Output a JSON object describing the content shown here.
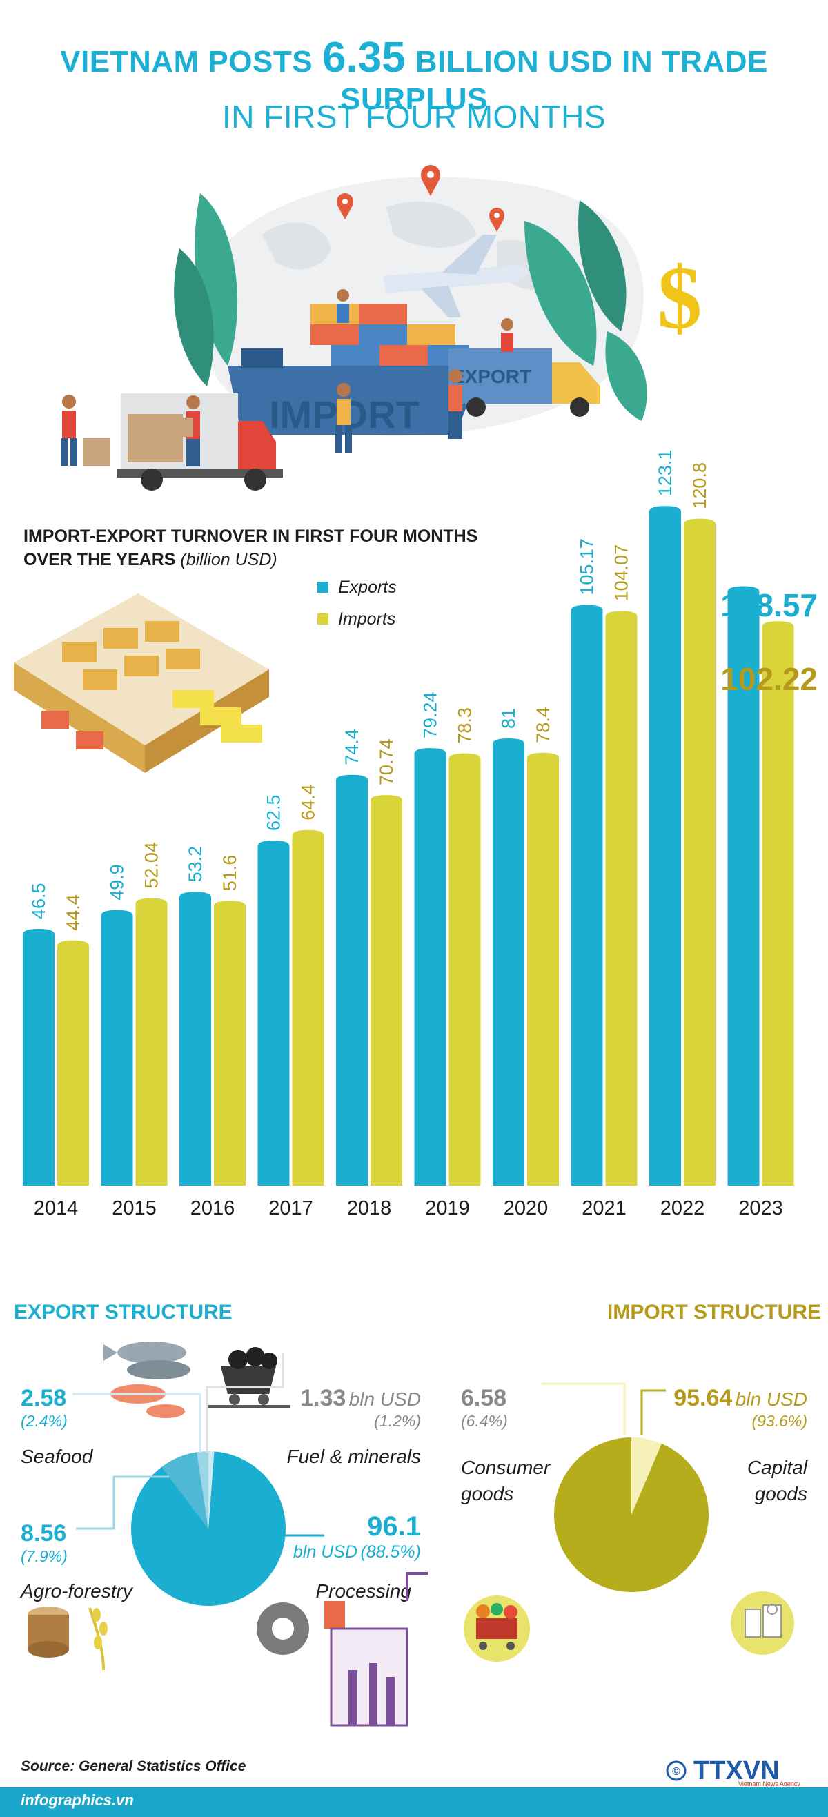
{
  "title": {
    "prefix": "VIETNAM POSTS",
    "highlight": "6.35",
    "suffix": "BILLION USD IN TRADE SURPLUS",
    "subtitle": "IN FIRST FOUR MONTHS"
  },
  "hero_labels": {
    "import": "IMPORT",
    "export": "EXPORT"
  },
  "chart_header": {
    "title_line1": "IMPORT-EXPORT TURNOVER IN FIRST FOUR MONTHS",
    "title_line2": "OVER THE YEARS",
    "unit": "(billion USD)"
  },
  "colors": {
    "exports": "#1aaed0",
    "imports": "#d9d43a",
    "import_text": "#b59a1c",
    "title": "#1bb0d4"
  },
  "chart_data": {
    "type": "bar",
    "categories": [
      "2014",
      "2015",
      "2016",
      "2017",
      "2018",
      "2019",
      "2020",
      "2021",
      "2022",
      "2023"
    ],
    "series": [
      {
        "name": "Exports",
        "values": [
          46.5,
          49.9,
          53.2,
          62.5,
          74.4,
          79.24,
          81,
          105.17,
          123.1,
          108.57
        ]
      },
      {
        "name": "Imports",
        "values": [
          44.4,
          52.04,
          51.6,
          64.4,
          70.74,
          78.3,
          78.4,
          104.07,
          120.8,
          102.22
        ]
      }
    ],
    "value_labels": {
      "exports": [
        "46.5",
        "49.9",
        "53.2",
        "62.5",
        "74.4",
        "79.24",
        "81",
        "105.17",
        "123.1",
        "108.57"
      ],
      "imports": [
        "44.4",
        "52.04",
        "51.6",
        "64.4",
        "70.74",
        "78.3",
        "78.4",
        "104.07",
        "120.8",
        "102.22"
      ]
    },
    "ylim": [
      0,
      130
    ],
    "grid": false,
    "legend": "top-center"
  },
  "export_structure": {
    "heading": "EXPORT STRUCTURE",
    "items": [
      {
        "value": "2.58",
        "pct": "(2.4%)",
        "label": "Seafood"
      },
      {
        "value": "1.33",
        "unit": "bln USD",
        "pct": "(1.2%)",
        "label": "Fuel & minerals"
      },
      {
        "value": "8.56",
        "pct": "(7.9%)",
        "label": "Agro-forestry"
      },
      {
        "value": "96.1",
        "unit": "bln USD",
        "pct": "(88.5%)",
        "label": "Processing"
      }
    ],
    "pie": [
      2.4,
      1.2,
      7.9,
      88.5
    ]
  },
  "import_structure": {
    "heading": "IMPORT STRUCTURE",
    "items": [
      {
        "value": "6.58",
        "pct": "(6.4%)",
        "label": "Consumer goods"
      },
      {
        "value": "95.64",
        "unit": "bln USD",
        "pct": "(93.6%)",
        "label": "Capital goods"
      }
    ],
    "pie": [
      6.4,
      93.6
    ]
  },
  "footer": {
    "source": "Source: General Statistics Office",
    "site": "infographics.vn",
    "logo": "TTXVN",
    "logo_sub": "Vietnam News Agency",
    "copyright": "©"
  }
}
